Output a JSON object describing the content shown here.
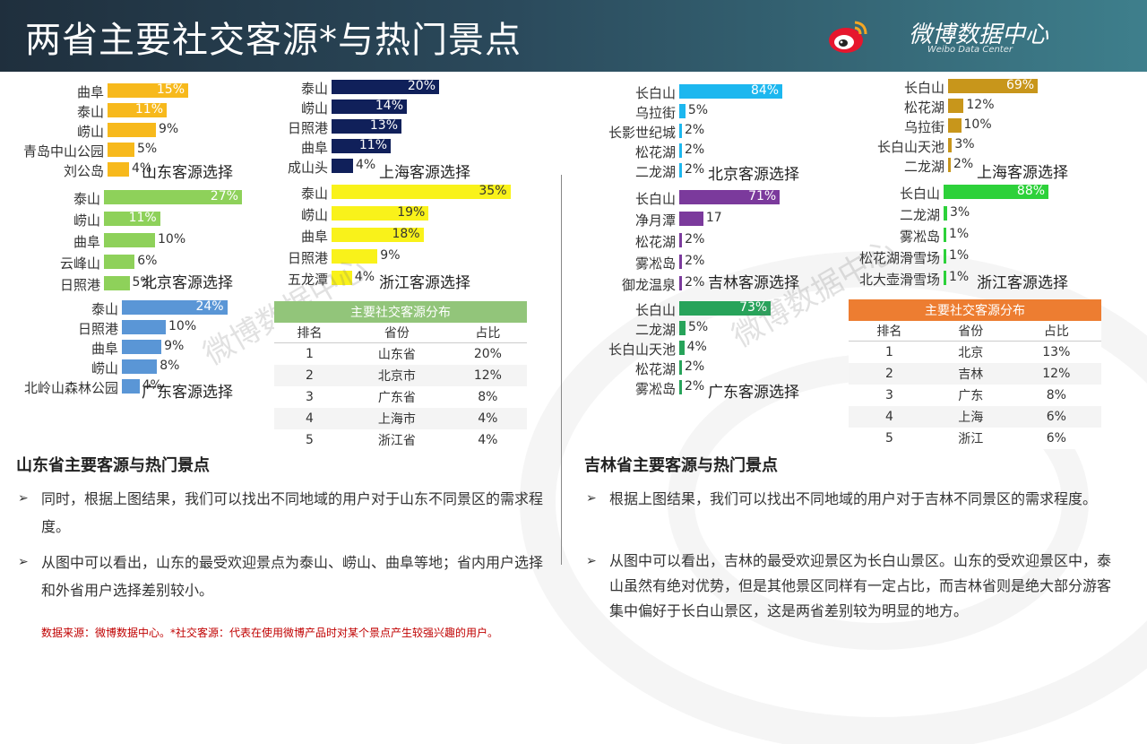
{
  "header": {
    "title": "两省主要社交客源*与热门景点",
    "brand_cn": "微博数据中心",
    "brand_en": "Weibo Data Center"
  },
  "watermark": "微博数据中心",
  "colors": {
    "header_dark": "#1f2f3d",
    "header_light": "#3e7f8c"
  },
  "chart_data": [
    {
      "type": "bar",
      "title": "山东客源选择",
      "orientation": "horizontal",
      "color": "#f7b91c",
      "categories": [
        "曲阜",
        "泰山",
        "崂山",
        "青岛中山公园",
        "刘公岛"
      ],
      "values": [
        15,
        11,
        9,
        5,
        4
      ],
      "labels": [
        "15%",
        "11%",
        "9%",
        "5%",
        "4%"
      ]
    },
    {
      "type": "bar",
      "title": "上海客源选择",
      "orientation": "horizontal",
      "color": "#10205a",
      "categories": [
        "泰山",
        "崂山",
        "日照港",
        "曲阜",
        "成山头"
      ],
      "values": [
        20,
        14,
        13,
        11,
        4
      ],
      "labels": [
        "20%",
        "14%",
        "13%",
        "11%",
        "4%"
      ]
    },
    {
      "type": "bar",
      "title": "北京客源选择",
      "orientation": "horizontal",
      "color": "#8ed15a",
      "categories": [
        "泰山",
        "崂山",
        "曲阜",
        "云峰山",
        "日照港"
      ],
      "values": [
        27,
        11,
        10,
        6,
        5
      ],
      "labels": [
        "27%",
        "11%",
        "10%",
        "6%",
        "5%"
      ]
    },
    {
      "type": "bar",
      "title": "浙江客源选择",
      "orientation": "horizontal",
      "color": "#f9f21a",
      "categories": [
        "泰山",
        "崂山",
        "曲阜",
        "日照港",
        "五龙潭"
      ],
      "values": [
        35,
        19,
        18,
        9,
        4
      ],
      "labels": [
        "35%",
        "19%",
        "18%",
        "9%",
        "4%"
      ]
    },
    {
      "type": "bar",
      "title": "广东客源选择",
      "orientation": "horizontal",
      "color": "#5a96d6",
      "categories": [
        "泰山",
        "日照港",
        "曲阜",
        "崂山",
        "北岭山森林公园"
      ],
      "values": [
        24,
        10,
        9,
        8,
        4
      ],
      "labels": [
        "24%",
        "10%",
        "9%",
        "8%",
        "4%"
      ]
    },
    {
      "type": "bar",
      "title": "北京客源选择",
      "orientation": "horizontal",
      "color": "#1cb7ef",
      "categories": [
        "长白山",
        "乌拉街",
        "长影世纪城",
        "松花湖",
        "二龙湖"
      ],
      "values": [
        84,
        5,
        2,
        2,
        2
      ],
      "labels": [
        "84%",
        "5%",
        "2%",
        "2%",
        "2%"
      ]
    },
    {
      "type": "bar",
      "title": "上海客源选择",
      "orientation": "horizontal",
      "color": "#c8961b",
      "categories": [
        "长白山",
        "松花湖",
        "乌拉街",
        "长白山天池",
        "二龙湖"
      ],
      "values": [
        69,
        12,
        10,
        3,
        2
      ],
      "labels": [
        "69%",
        "12%",
        "10%",
        "3%",
        "2%"
      ]
    },
    {
      "type": "bar",
      "title": "吉林客源选择",
      "orientation": "horizontal",
      "color": "#7b3a9c",
      "categories": [
        "长白山",
        "净月潭",
        "松花湖",
        "雾凇岛",
        "御龙温泉"
      ],
      "values": [
        71,
        17,
        2,
        2,
        2
      ],
      "labels": [
        "71%",
        "17",
        "2%",
        "2%",
        "2%"
      ]
    },
    {
      "type": "bar",
      "title": "浙江客源选择",
      "orientation": "horizontal",
      "color": "#2dd13a",
      "categories": [
        "长白山",
        "二龙湖",
        "雾凇岛",
        "松花湖滑雪场",
        "北大壶滑雪场"
      ],
      "values": [
        88,
        3,
        1,
        1,
        1
      ],
      "labels": [
        "88%",
        "3%",
        "1%",
        "1%",
        "1%"
      ]
    },
    {
      "type": "bar",
      "title": "广东客源选择",
      "orientation": "horizontal",
      "color": "#27a35a",
      "categories": [
        "长白山",
        "二龙湖",
        "长白山天池",
        "松花湖",
        "雾凇岛"
      ],
      "values": [
        73,
        5,
        4,
        2,
        2
      ],
      "labels": [
        "73%",
        "5%",
        "4%",
        "2%",
        "2%"
      ]
    }
  ],
  "tables": [
    {
      "title": "主要社交客源分布",
      "color": "#92c57a",
      "headers": [
        "排名",
        "省份",
        "占比"
      ],
      "rows": [
        [
          "1",
          "山东省",
          "20%"
        ],
        [
          "2",
          "北京市",
          "12%"
        ],
        [
          "3",
          "广东省",
          "8%"
        ],
        [
          "4",
          "上海市",
          "4%"
        ],
        [
          "5",
          "浙江省",
          "4%"
        ]
      ]
    },
    {
      "title": "主要社交客源分布",
      "color": "#ed7d31",
      "headers": [
        "排名",
        "省份",
        "占比"
      ],
      "rows": [
        [
          "1",
          "北京",
          "13%"
        ],
        [
          "2",
          "吉林",
          "12%"
        ],
        [
          "3",
          "广东",
          "8%"
        ],
        [
          "4",
          "上海",
          "6%"
        ],
        [
          "5",
          "浙江",
          "6%"
        ]
      ]
    }
  ],
  "left_section": {
    "title": "山东省主要客源与热门景点",
    "bullets": [
      "同时，根据上图结果，我们可以找出不同地域的用户对于山东不同景区的需求程度。",
      "从图中可以看出，山东的最受欢迎景点为泰山、崂山、曲阜等地；省内用户选择和外省用户选择差别较小。"
    ]
  },
  "right_section": {
    "title": "吉林省主要客源与热门景点",
    "bullets": [
      "根据上图结果，我们可以找出不同地域的用户对于吉林不同景区的需求程度。",
      "从图中可以看出，吉林的最受欢迎景区为长白山景区。山东的受欢迎景区中，泰山虽然有绝对优势，但是其他景区同样有一定占比，而吉林省则是绝大部分游客集中偏好于长白山景区，这是两省差别较为明显的地方。"
    ]
  },
  "footnote": "数据来源：微博数据中心。*社交客源：代表在使用微博产品时对某个景点产生较强兴趣的用户。"
}
